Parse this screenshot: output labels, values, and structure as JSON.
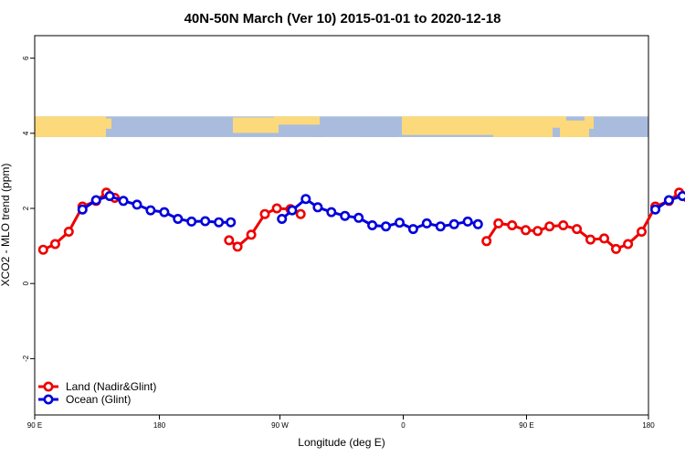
{
  "chart_data": {
    "type": "line",
    "title": "40N-50N March (Ver 10)   2015-01-01 to 2020-12-18",
    "xlabel": "Longitude (deg E)",
    "ylabel": "XCO2 - MLO trend (ppm)",
    "xlim": [
      90,
      450
    ],
    "ylim": [
      -3.5,
      6.6
    ],
    "x_ticks": [
      {
        "value": 90,
        "label": "90 E"
      },
      {
        "value": 180,
        "label": "180"
      },
      {
        "value": 270,
        "label": "90 W"
      },
      {
        "value": 360,
        "label": "0"
      },
      {
        "value": 450,
        "label": "90 E"
      },
      {
        "value": 540,
        "label": "180"
      }
    ],
    "y_ticks": [
      {
        "value": -2,
        "label": "-2"
      },
      {
        "value": 0,
        "label": "0"
      },
      {
        "value": 2,
        "label": "2"
      },
      {
        "value": 4,
        "label": "4"
      },
      {
        "value": 6,
        "label": "6"
      }
    ],
    "legend": {
      "position": "bottom-left"
    },
    "map_strip": {
      "y_bottom": 3.9,
      "y_top": 4.45,
      "land_color": "#fcd97a",
      "ocean_color": "#a9bcde"
    },
    "series": [
      {
        "name": "Land (Nadir&Glint)",
        "color": "#ee0000",
        "segments": [
          [
            [
              95,
              0.9
            ],
            [
              102,
              1.05
            ],
            [
              110,
              1.38
            ],
            [
              118,
              2.05
            ],
            [
              126,
              2.2
            ],
            [
              132,
              2.42
            ],
            [
              137,
              2.28
            ]
          ],
          [
            [
              204,
              1.15
            ],
            [
              209,
              0.98
            ],
            [
              217,
              1.3
            ],
            [
              225,
              1.85
            ],
            [
              232,
              2.0
            ],
            [
              240,
              1.98
            ],
            [
              246,
              1.85
            ]
          ],
          [
            [
              355,
              1.13
            ],
            [
              362,
              1.6
            ],
            [
              370,
              1.55
            ],
            [
              378,
              1.42
            ],
            [
              385,
              1.4
            ],
            [
              392,
              1.52
            ],
            [
              400,
              1.55
            ],
            [
              408,
              1.45
            ],
            [
              416,
              1.17
            ],
            [
              424,
              1.2
            ],
            [
              431,
              0.92
            ],
            [
              438,
              1.05
            ],
            [
              446,
              1.38
            ],
            [
              454,
              2.05
            ],
            [
              462,
              2.2
            ],
            [
              468,
              2.42
            ],
            [
              473,
              2.28
            ]
          ]
        ]
      },
      {
        "name": "Ocean (Glint)",
        "color": "#0000dd",
        "segments": [
          [
            [
              118,
              1.97
            ],
            [
              126,
              2.22
            ],
            [
              134,
              2.33
            ],
            [
              142,
              2.2
            ],
            [
              150,
              2.1
            ],
            [
              158,
              1.95
            ],
            [
              166,
              1.9
            ],
            [
              174,
              1.72
            ],
            [
              182,
              1.65
            ],
            [
              190,
              1.66
            ],
            [
              198,
              1.63
            ],
            [
              205,
              1.63
            ]
          ],
          [
            [
              235,
              1.72
            ],
            [
              241,
              1.95
            ],
            [
              249,
              2.25
            ],
            [
              256,
              2.03
            ],
            [
              264,
              1.9
            ],
            [
              272,
              1.8
            ],
            [
              280,
              1.75
            ],
            [
              288,
              1.55
            ],
            [
              296,
              1.52
            ],
            [
              304,
              1.62
            ],
            [
              312,
              1.45
            ],
            [
              320,
              1.6
            ],
            [
              328,
              1.52
            ],
            [
              336,
              1.58
            ],
            [
              344,
              1.65
            ],
            [
              350,
              1.58
            ]
          ],
          [
            [
              454,
              1.97
            ],
            [
              462,
              2.22
            ],
            [
              470,
              2.33
            ],
            [
              478,
              2.2
            ],
            [
              486,
              2.1
            ],
            [
              493,
              1.95
            ]
          ]
        ]
      }
    ]
  }
}
